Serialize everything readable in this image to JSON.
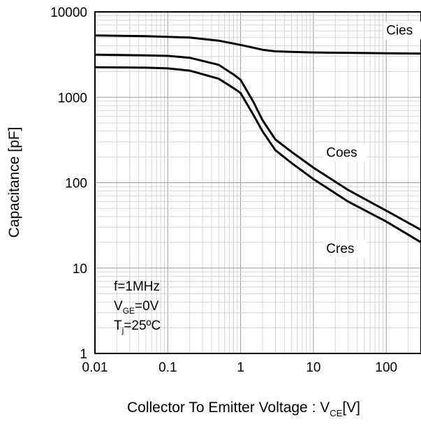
{
  "chart_data": {
    "type": "line",
    "xscale": "log",
    "yscale": "log",
    "xlim": [
      0.01,
      300
    ],
    "ylim": [
      1,
      10000
    ],
    "grid": true,
    "xlabel": {
      "main": "Collector To Emitter Voltage : V",
      "sub": "CE",
      "tail": "[V]"
    },
    "ylabel": "Capacitance [pF]",
    "x_ticks": [
      {
        "value": 0.01,
        "label": "0.01"
      },
      {
        "value": 0.1,
        "label": "0.1"
      },
      {
        "value": 1,
        "label": "1"
      },
      {
        "value": 10,
        "label": "10"
      },
      {
        "value": 100,
        "label": "100"
      }
    ],
    "y_ticks": [
      {
        "value": 1,
        "label": "1"
      },
      {
        "value": 10,
        "label": "10"
      },
      {
        "value": 100,
        "label": "100"
      },
      {
        "value": 1000,
        "label": "1000"
      },
      {
        "value": 10000,
        "label": "10000"
      }
    ],
    "series": [
      {
        "name": "Cies",
        "label_at": [
          100,
          5400
        ],
        "points": [
          [
            0.01,
            5300
          ],
          [
            0.05,
            5200
          ],
          [
            0.2,
            5000
          ],
          [
            0.5,
            4600
          ],
          [
            1,
            4100
          ],
          [
            2,
            3600
          ],
          [
            3,
            3450
          ],
          [
            5,
            3400
          ],
          [
            10,
            3350
          ],
          [
            50,
            3300
          ],
          [
            100,
            3280
          ],
          [
            300,
            3250
          ]
        ]
      },
      {
        "name": "Coes",
        "label_at": [
          15,
          200
        ],
        "points": [
          [
            0.01,
            3150
          ],
          [
            0.05,
            3100
          ],
          [
            0.1,
            3050
          ],
          [
            0.2,
            2900
          ],
          [
            0.5,
            2400
          ],
          [
            0.8,
            1850
          ],
          [
            1,
            1600
          ],
          [
            1.5,
            880
          ],
          [
            2,
            540
          ],
          [
            3,
            320
          ],
          [
            5,
            230
          ],
          [
            10,
            150
          ],
          [
            30,
            82
          ],
          [
            100,
            47
          ],
          [
            300,
            28
          ]
        ]
      },
      {
        "name": "Cres",
        "label_at": [
          15,
          15
        ],
        "points": [
          [
            0.01,
            2250
          ],
          [
            0.05,
            2220
          ],
          [
            0.1,
            2180
          ],
          [
            0.2,
            2050
          ],
          [
            0.5,
            1650
          ],
          [
            0.8,
            1280
          ],
          [
            1,
            1120
          ],
          [
            1.5,
            620
          ],
          [
            2,
            400
          ],
          [
            3,
            240
          ],
          [
            5,
            170
          ],
          [
            10,
            110
          ],
          [
            30,
            60
          ],
          [
            100,
            35
          ],
          [
            300,
            20
          ]
        ]
      }
    ],
    "annotation": {
      "line1": "f=1MHz",
      "line2": {
        "main": "V",
        "sub": "GE",
        "tail": "=0V"
      },
      "line3": {
        "main": "T",
        "sub": "j",
        "tail": "=25ºC"
      }
    }
  }
}
